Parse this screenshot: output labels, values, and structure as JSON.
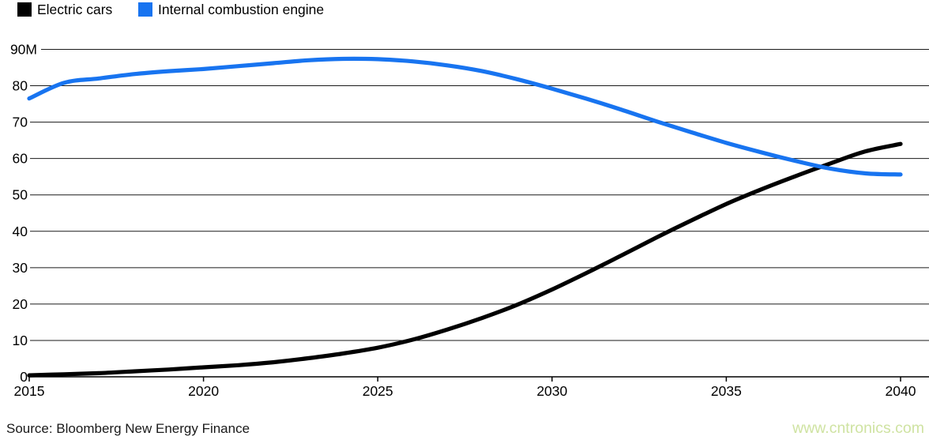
{
  "legend": {
    "items": [
      {
        "label": "Electric cars",
        "color": "#000000"
      },
      {
        "label": "Internal combustion engine",
        "color": "#1874f0"
      }
    ]
  },
  "chart_data": {
    "type": "line",
    "title": "",
    "xlabel": "",
    "ylabel": "",
    "x": [
      2015,
      2016,
      2017,
      2018,
      2019,
      2020,
      2021,
      2022,
      2023,
      2024,
      2025,
      2026,
      2027,
      2028,
      2029,
      2030,
      2031,
      2032,
      2033,
      2034,
      2035,
      2036,
      2037,
      2038,
      2039,
      2040
    ],
    "series": [
      {
        "name": "Electric cars",
        "color": "#000000",
        "values": [
          0.4,
          0.7,
          1.0,
          1.5,
          2.0,
          2.6,
          3.2,
          4.0,
          5.1,
          6.4,
          8.0,
          10.2,
          13.0,
          16.2,
          19.8,
          24.0,
          28.6,
          33.4,
          38.3,
          43.0,
          47.5,
          51.5,
          55.2,
          58.7,
          62.0,
          64.0
        ]
      },
      {
        "name": "Internal combustion engine",
        "color": "#1874f0",
        "values": [
          76.5,
          80.8,
          82.0,
          83.2,
          84.0,
          84.6,
          85.4,
          86.2,
          87.0,
          87.4,
          87.3,
          86.7,
          85.6,
          84.0,
          81.8,
          79.2,
          76.4,
          73.4,
          70.2,
          67.2,
          64.3,
          61.7,
          59.3,
          57.2,
          55.9,
          55.6
        ]
      }
    ],
    "xlim": [
      2015,
      2040
    ],
    "ylim": [
      0,
      90
    ],
    "xticks": [
      2015,
      2020,
      2025,
      2030,
      2035,
      2040
    ],
    "xtick_labels": [
      "2015",
      "2020",
      "2025",
      "2030",
      "2035",
      "2040"
    ],
    "yticks": [
      0,
      10,
      20,
      30,
      40,
      50,
      60,
      70,
      80,
      90
    ],
    "ytick_labels": [
      "0",
      "10",
      "20",
      "30",
      "40",
      "50",
      "60",
      "70",
      "80",
      "90M"
    ],
    "grid": true,
    "legend_position": "top-left",
    "gridline_color": "#1a1a1a",
    "axis_color": "#000000"
  },
  "footer": {
    "source": "Source: Bloomberg New Energy Finance",
    "watermark": "www.cntronics.com"
  }
}
